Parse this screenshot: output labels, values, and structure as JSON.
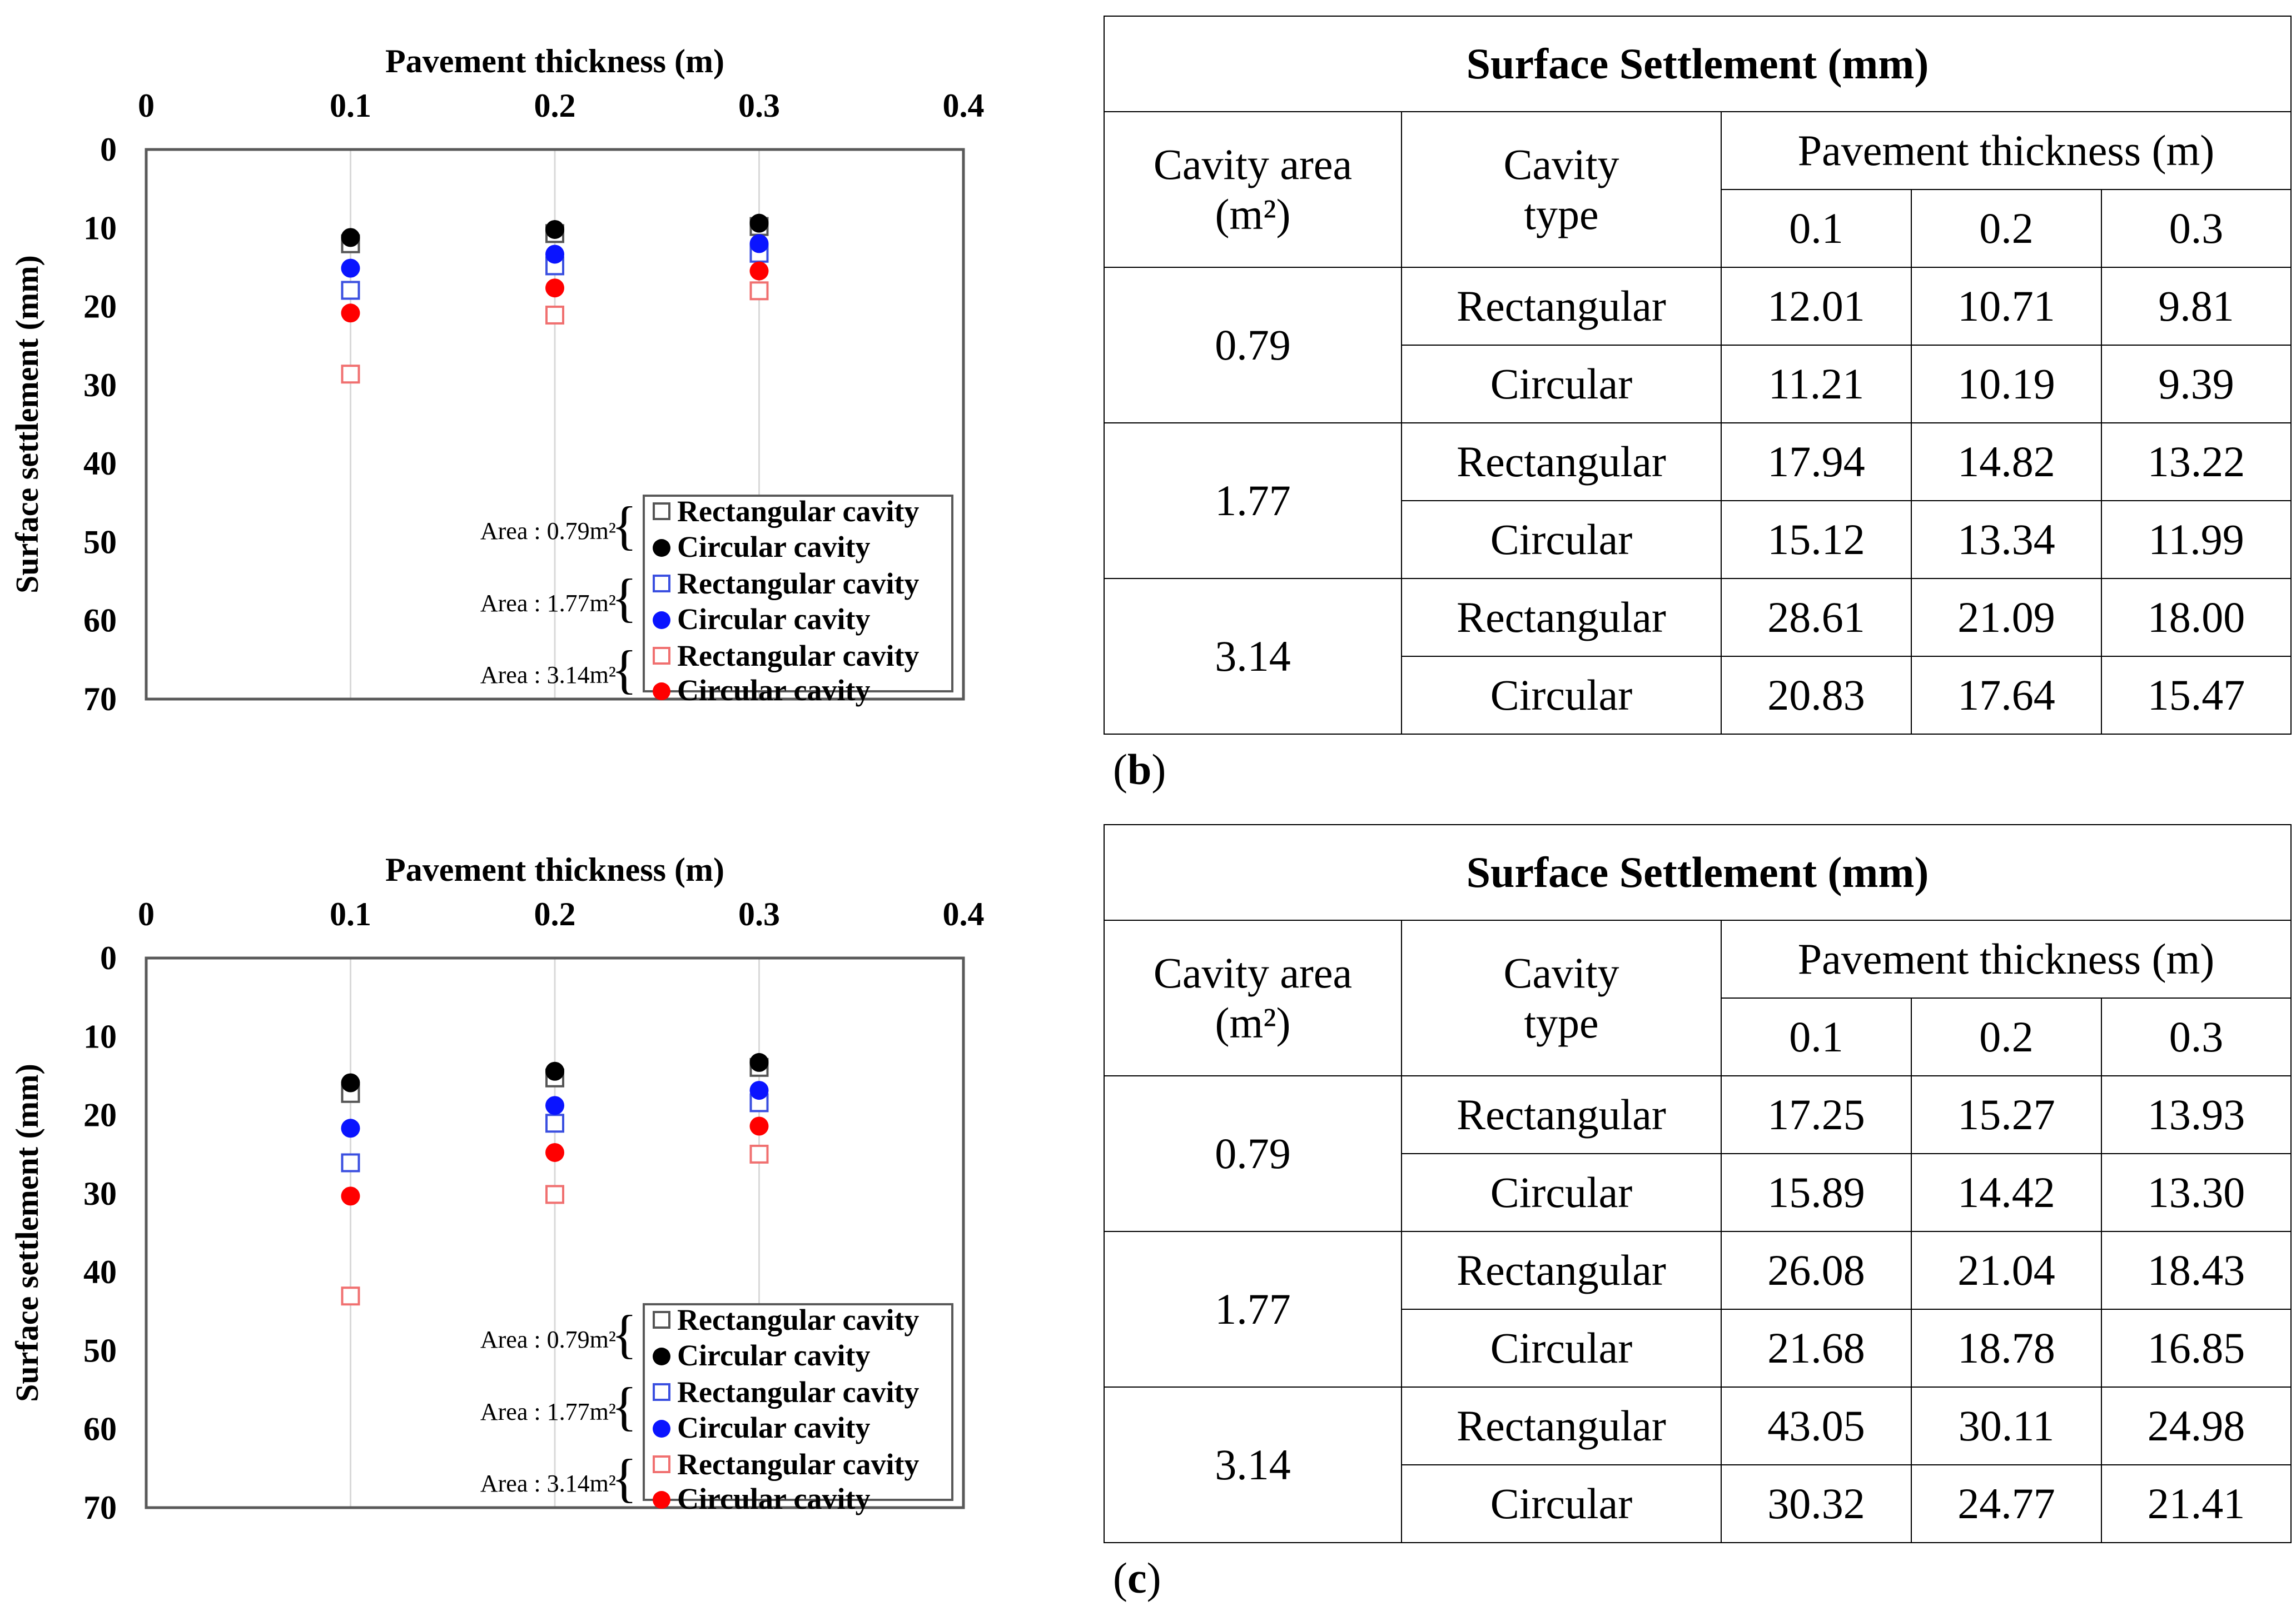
{
  "colors": {
    "rect_small": "#555555",
    "circ_small": "#000000",
    "rect_medium": "#3a4fe0",
    "circ_medium": "#0a14ff",
    "rect_large": "#f07070",
    "circ_large": "#ff0000",
    "grid": "#d9d9d9",
    "frame": "#595959"
  },
  "legend": {
    "rect_label": "Rectangular cavity",
    "circ_label": "Circular cavity",
    "areas": [
      "Area : 0.79m²",
      "Area : 1.77m²",
      "Area : 3.14m²"
    ]
  },
  "chart_data": [
    {
      "type": "scatter",
      "panel": "a",
      "xlabel": "Pavement thickness (m)",
      "ylabel": "Surface settlement (mm)",
      "xlim": [
        0,
        0.4
      ],
      "ylim": [
        0,
        70
      ],
      "y_inverted": true,
      "x_axis_position": "top",
      "xticks": [
        "0",
        "0.1",
        "0.2",
        "0.3",
        "0.4"
      ],
      "yticks": [
        "0",
        "10",
        "20",
        "30",
        "40",
        "50",
        "60",
        "70"
      ],
      "x": [
        0.1,
        0.2,
        0.3
      ],
      "series": [
        {
          "name": "Rectangular cavity (Area 0.79m²)",
          "marker": "open-square",
          "color": "#555555",
          "values": [
            12.01,
            10.71,
            9.81
          ]
        },
        {
          "name": "Circular cavity (Area 0.79m²)",
          "marker": "filled-circle",
          "color": "#000000",
          "values": [
            11.21,
            10.19,
            9.39
          ]
        },
        {
          "name": "Rectangular cavity (Area 1.77m²)",
          "marker": "open-square",
          "color": "#3a4fe0",
          "values": [
            17.94,
            14.82,
            13.22
          ]
        },
        {
          "name": "Circular cavity (Area 1.77m²)",
          "marker": "filled-circle",
          "color": "#0a14ff",
          "values": [
            15.12,
            13.34,
            11.99
          ]
        },
        {
          "name": "Rectangular cavity (Area 3.14m²)",
          "marker": "open-square",
          "color": "#f07070",
          "values": [
            28.61,
            21.09,
            18.0
          ]
        },
        {
          "name": "Circular cavity (Area 3.14m²)",
          "marker": "filled-circle",
          "color": "#ff0000",
          "values": [
            20.83,
            17.64,
            15.47
          ]
        }
      ]
    },
    {
      "type": "scatter",
      "panel": "c-left",
      "xlabel": "Pavement thickness (m)",
      "ylabel": "Surface settlement (mm)",
      "xlim": [
        0,
        0.4
      ],
      "ylim": [
        0,
        70
      ],
      "y_inverted": true,
      "x_axis_position": "top",
      "xticks": [
        "0",
        "0.1",
        "0.2",
        "0.3",
        "0.4"
      ],
      "yticks": [
        "0",
        "10",
        "20",
        "30",
        "40",
        "50",
        "60",
        "70"
      ],
      "x": [
        0.1,
        0.2,
        0.3
      ],
      "series": [
        {
          "name": "Rectangular cavity (Area 0.79m²)",
          "marker": "open-square",
          "color": "#555555",
          "values": [
            17.25,
            15.27,
            13.93
          ]
        },
        {
          "name": "Circular cavity (Area 0.79m²)",
          "marker": "filled-circle",
          "color": "#000000",
          "values": [
            15.89,
            14.42,
            13.3
          ]
        },
        {
          "name": "Rectangular cavity (Area 1.77m²)",
          "marker": "open-square",
          "color": "#3a4fe0",
          "values": [
            26.08,
            21.04,
            18.43
          ]
        },
        {
          "name": "Circular cavity (Area 1.77m²)",
          "marker": "filled-circle",
          "color": "#0a14ff",
          "values": [
            21.68,
            18.78,
            16.85
          ]
        },
        {
          "name": "Rectangular cavity (Area 3.14m²)",
          "marker": "open-square",
          "color": "#f07070",
          "values": [
            43.05,
            30.11,
            24.98
          ]
        },
        {
          "name": "Circular cavity (Area 3.14m²)",
          "marker": "filled-circle",
          "color": "#ff0000",
          "values": [
            30.32,
            24.77,
            21.41
          ]
        }
      ]
    }
  ],
  "tables": [
    {
      "title": "Surface Settlement (mm)",
      "col_area": "Cavity area",
      "col_area_unit": "(m²)",
      "col_type_line1": "Cavity",
      "col_type_line2": "type",
      "col_thick": "Pavement thickness (m)",
      "thick": [
        "0.1",
        "0.2",
        "0.3"
      ],
      "groups": [
        {
          "area": "0.79",
          "rows": [
            {
              "type": "Rectangular",
              "v": [
                "12.01",
                "10.71",
                "9.81"
              ]
            },
            {
              "type": "Circular",
              "v": [
                "11.21",
                "10.19",
                "9.39"
              ]
            }
          ]
        },
        {
          "area": "1.77",
          "rows": [
            {
              "type": "Rectangular",
              "v": [
                "17.94",
                "14.82",
                "13.22"
              ]
            },
            {
              "type": "Circular",
              "v": [
                "15.12",
                "13.34",
                "11.99"
              ]
            }
          ]
        },
        {
          "area": "3.14",
          "rows": [
            {
              "type": "Rectangular",
              "v": [
                "28.61",
                "21.09",
                "18.00"
              ]
            },
            {
              "type": "Circular",
              "v": [
                "20.83",
                "17.64",
                "15.47"
              ]
            }
          ]
        }
      ]
    },
    {
      "title": "Surface Settlement (mm)",
      "col_area": "Cavity area",
      "col_area_unit": "(m²)",
      "col_type_line1": "Cavity",
      "col_type_line2": "type",
      "col_thick": "Pavement thickness (m)",
      "thick": [
        "0.1",
        "0.2",
        "0.3"
      ],
      "groups": [
        {
          "area": "0.79",
          "rows": [
            {
              "type": "Rectangular",
              "v": [
                "17.25",
                "15.27",
                "13.93"
              ]
            },
            {
              "type": "Circular",
              "v": [
                "15.89",
                "14.42",
                "13.30"
              ]
            }
          ]
        },
        {
          "area": "1.77",
          "rows": [
            {
              "type": "Rectangular",
              "v": [
                "26.08",
                "21.04",
                "18.43"
              ]
            },
            {
              "type": "Circular",
              "v": [
                "21.68",
                "18.78",
                "16.85"
              ]
            }
          ]
        },
        {
          "area": "3.14",
          "rows": [
            {
              "type": "Rectangular",
              "v": [
                "43.05",
                "30.11",
                "24.98"
              ]
            },
            {
              "type": "Circular",
              "v": [
                "30.32",
                "24.77",
                "21.41"
              ]
            }
          ]
        }
      ]
    }
  ],
  "panel_labels": {
    "b_open": "(",
    "b_letter": "b",
    "b_close": ")",
    "c_open": "(",
    "c_letter": "c",
    "c_close": ")"
  }
}
